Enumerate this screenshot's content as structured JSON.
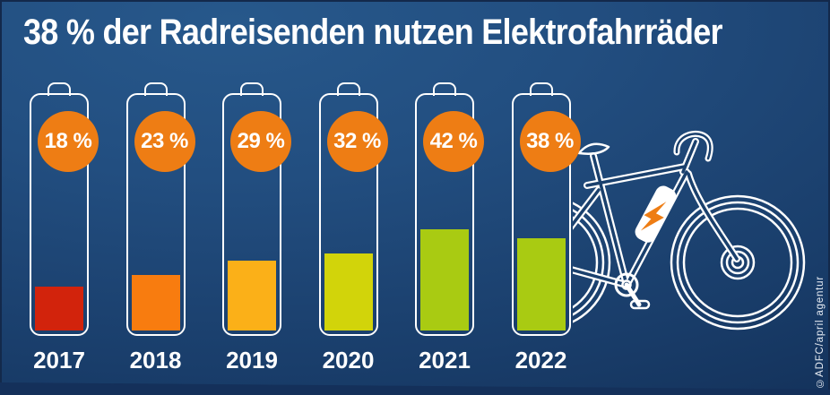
{
  "title": "38 % der Radreisenden nutzen Elektrofahrräder",
  "credit": "©ADFC/april agentur",
  "colors": {
    "background_top": "#27588b",
    "background_bottom": "#112c52",
    "badge": "#ee7d14",
    "bolt": "#ee7d14",
    "outline": "#ffffff",
    "text": "#ffffff"
  },
  "icons": {
    "ebike": "e-bike-outline-illustration",
    "bolt": "lightning-bolt"
  },
  "chart_data": {
    "type": "bar",
    "title": "38 % der Radreisenden nutzen Elektrofahrräder",
    "categories": [
      "2017",
      "2018",
      "2019",
      "2020",
      "2021",
      "2022"
    ],
    "values": [
      18,
      23,
      29,
      32,
      42,
      38
    ],
    "labels": [
      "18 %",
      "23 %",
      "29 %",
      "32 %",
      "42 %",
      "38 %"
    ],
    "bar_colors": [
      "#d2230c",
      "#f87c0f",
      "#fbb018",
      "#d2d40a",
      "#a9cb12",
      "#a9cb12"
    ],
    "unit": "%",
    "ylim": [
      0,
      100
    ],
    "xlabel": "",
    "ylabel": "",
    "legend": null,
    "grid": false,
    "style_note": "bars drawn as battery symbols, percentage in orange circular badge"
  }
}
